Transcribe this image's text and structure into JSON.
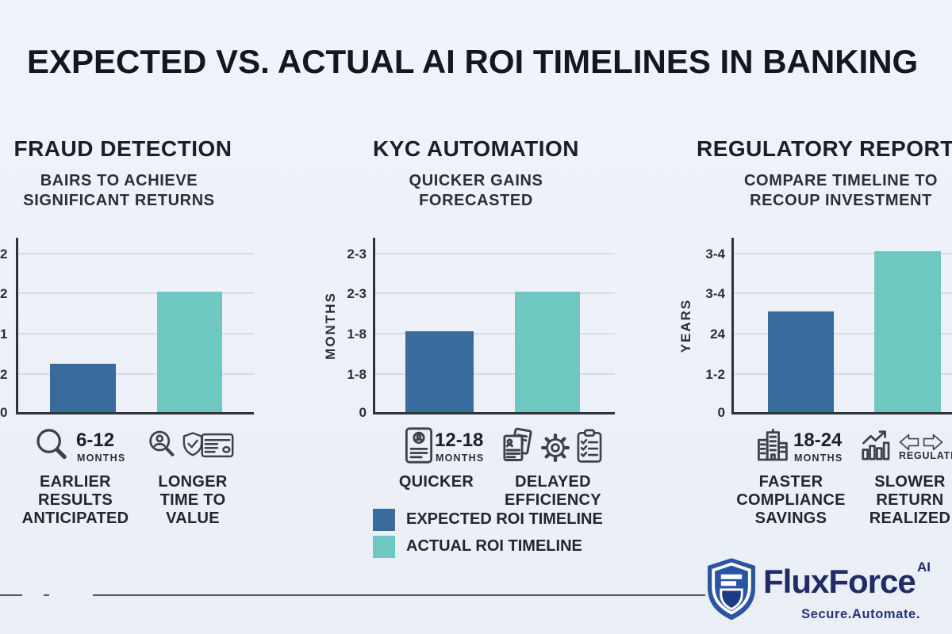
{
  "title": "EXPECTED VS. ACTUAL AI ROI TIMELINES IN BANKING",
  "colors": {
    "expected_bar": "#3A6B9D",
    "actual_bar": "#6FC7C2",
    "background": "#EEF2F8",
    "logo_navy": "#222B66"
  },
  "chart_data": [
    {
      "type": "bar",
      "title": "FRAUD DETECTION",
      "subtitle": "BAIRS TO ACHIEVE\nSIGNIFICANT RETURNS",
      "ylabel": "",
      "yticks_top_to_bottom": [
        "2",
        "2",
        "1",
        "2",
        "0"
      ],
      "categories": [
        "EXPECTED ROI TIMELINE",
        "ACTUAL ROI TIMELINE"
      ],
      "values_gridline_units": [
        1.2,
        3.0
      ],
      "badge": {
        "icon": "magnifier-icon",
        "value": "6-12",
        "unit": "MONTHS"
      },
      "icon_names": [
        "person-search-icon",
        "shield-check-icon",
        "credit-card-icon"
      ],
      "bar_labels": [
        "EARLIER\nRESULTS\nANTICIPATED",
        "LONGER\nTIME TO\nVALUE"
      ]
    },
    {
      "type": "bar",
      "title": "KYC AUTOMATION",
      "subtitle": "QUICKER GAINS\nFORECASTED",
      "ylabel": "MONTHS",
      "yticks_top_to_bottom": [
        "2-3",
        "2-3",
        "1-8",
        "1-8",
        "0"
      ],
      "categories": [
        "EXPECTED ROI TIMELINE",
        "ACTUAL ROI TIMELINE"
      ],
      "values_gridline_units": [
        2.0,
        3.0
      ],
      "badge": {
        "icon": "id-card-icon",
        "value": "12-18",
        "unit": "MONTHS"
      },
      "icon_names": [
        "documents-icon",
        "gear-icon",
        "clipboard-check-icon"
      ],
      "bar_labels": [
        "QUICKER",
        "DELAYED\nEFFICIENCY"
      ]
    },
    {
      "type": "bar",
      "title": "REGULATORY REPORTING",
      "subtitle": "COMPARE TIMELINE TO\nRECOUP INVESTMENT",
      "ylabel": "YEARS",
      "yticks_top_to_bottom": [
        "3-4",
        "3-4",
        "24",
        "1-2",
        "0"
      ],
      "categories": [
        "EXPECTED ROI TIMELINE",
        "ACTUAL ROI TIMELINE"
      ],
      "values_gridline_units": [
        2.5,
        4.0
      ],
      "badge": {
        "icon": "buildings-icon",
        "value": "18-24",
        "unit": "MONTHS"
      },
      "icon_names": [
        "chart-growth-icon",
        "double-arrow-icon"
      ],
      "icon_caption": "REGULATION",
      "bar_labels": [
        "FASTER\nCOMPLIANCE\nSAVINGS",
        "SLOWER\nRETURN\nREALIZED"
      ]
    }
  ],
  "legend": {
    "items": [
      {
        "label": "EXPECTED ROI TIMELINE",
        "color": "#3A6B9D"
      },
      {
        "label": "ACTUAL ROI TIMELINE",
        "color": "#6FC7C2"
      }
    ]
  },
  "logo": {
    "brand": "FluxForce",
    "suffix": "AI",
    "tagline": "Secure.Automate."
  }
}
